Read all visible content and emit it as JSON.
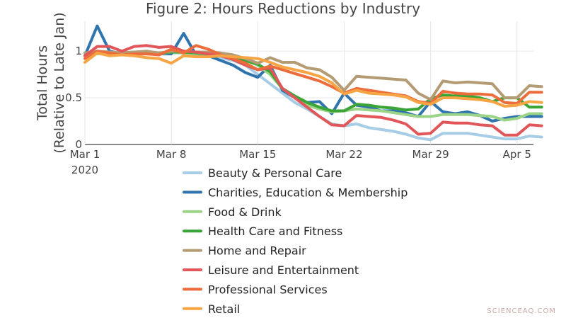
{
  "chart_data": {
    "type": "line",
    "title": "Figure 2: Hours Reductions by Industry",
    "ylabel_line1": "Total Hours",
    "ylabel_line2": "(Relative to Late Jan)",
    "xlabel": "",
    "x": [
      "Mar 1",
      "Mar 2",
      "Mar 3",
      "Mar 4",
      "Mar 5",
      "Mar 6",
      "Mar 7",
      "Mar 8",
      "Mar 9",
      "Mar 10",
      "Mar 11",
      "Mar 12",
      "Mar 13",
      "Mar 14",
      "Mar 15",
      "Mar 16",
      "Mar 17",
      "Mar 18",
      "Mar 19",
      "Mar 20",
      "Mar 21",
      "Mar 22",
      "Mar 23",
      "Mar 24",
      "Mar 25",
      "Mar 26",
      "Mar 27",
      "Mar 28",
      "Mar 29",
      "Mar 30",
      "Mar 31",
      "Apr 1",
      "Apr 2",
      "Apr 3",
      "Apr 4",
      "Apr 5",
      "Apr 6",
      "Apr 7"
    ],
    "x_ticks": [
      {
        "date": "Mar 1",
        "label": "Mar 1",
        "sublabel": "2020"
      },
      {
        "date": "Mar 8",
        "label": "Mar 8",
        "sublabel": ""
      },
      {
        "date": "Mar 15",
        "label": "Mar 15",
        "sublabel": ""
      },
      {
        "date": "Mar 22",
        "label": "Mar 22",
        "sublabel": ""
      },
      {
        "date": "Mar 29",
        "label": "Mar 29",
        "sublabel": ""
      },
      {
        "date": "Apr 5",
        "label": "Apr 5",
        "sublabel": ""
      }
    ],
    "y_ticks": [
      0,
      0.5,
      1
    ],
    "y_tick_labels": [
      "0",
      "0.5",
      "1"
    ],
    "ylim": [
      0,
      1.32
    ],
    "grid": true,
    "legend_position": "bottom",
    "series": [
      {
        "name": "Beauty & Personal Care",
        "color": "#a6cde5",
        "values": [
          0.97,
          0.98,
          0.97,
          0.97,
          0.97,
          0.97,
          0.97,
          0.98,
          0.98,
          0.97,
          0.96,
          0.93,
          0.9,
          0.85,
          0.75,
          0.65,
          0.55,
          0.45,
          0.38,
          0.3,
          0.22,
          0.2,
          0.22,
          0.18,
          0.16,
          0.14,
          0.11,
          0.07,
          0.05,
          0.12,
          0.12,
          0.12,
          0.1,
          0.08,
          0.06,
          0.06,
          0.09,
          0.08
        ]
      },
      {
        "name": "Charities, Education & Membership",
        "color": "#2f74ad",
        "values": [
          0.95,
          1.27,
          1.0,
          0.97,
          0.97,
          0.99,
          0.97,
          0.97,
          1.19,
          0.96,
          0.95,
          0.9,
          0.85,
          0.77,
          0.72,
          0.85,
          0.58,
          0.5,
          0.45,
          0.46,
          0.33,
          0.55,
          0.42,
          0.4,
          0.36,
          0.36,
          0.34,
          0.3,
          0.46,
          0.35,
          0.33,
          0.35,
          0.31,
          0.25,
          0.28,
          0.3,
          0.3,
          0.3
        ]
      },
      {
        "name": "Food & Drink",
        "color": "#9bd387",
        "values": [
          0.97,
          0.97,
          0.98,
          0.96,
          0.98,
          0.97,
          0.97,
          0.99,
          0.98,
          0.97,
          0.97,
          0.95,
          0.93,
          0.9,
          0.85,
          0.75,
          0.6,
          0.5,
          0.42,
          0.38,
          0.35,
          0.36,
          0.38,
          0.37,
          0.36,
          0.34,
          0.32,
          0.3,
          0.3,
          0.32,
          0.32,
          0.32,
          0.31,
          0.3,
          0.26,
          0.28,
          0.33,
          0.33
        ]
      },
      {
        "name": "Health Care and Fitness",
        "color": "#3aa536",
        "values": [
          0.98,
          0.99,
          0.98,
          0.98,
          0.99,
          0.99,
          0.98,
          0.99,
          0.99,
          0.98,
          0.97,
          0.96,
          0.93,
          0.9,
          0.86,
          0.78,
          0.6,
          0.52,
          0.45,
          0.4,
          0.36,
          0.36,
          0.43,
          0.42,
          0.4,
          0.39,
          0.37,
          0.38,
          0.49,
          0.53,
          0.52,
          0.52,
          0.5,
          0.46,
          0.5,
          0.5,
          0.4,
          0.4
        ]
      },
      {
        "name": "Home and Repair",
        "color": "#b39b73",
        "values": [
          0.98,
          1.0,
          0.99,
          0.98,
          0.99,
          1.0,
          0.98,
          1.0,
          1.0,
          0.99,
          0.99,
          0.98,
          0.96,
          0.92,
          0.87,
          0.93,
          0.88,
          0.88,
          0.82,
          0.8,
          0.72,
          0.58,
          0.73,
          0.72,
          0.71,
          0.7,
          0.69,
          0.55,
          0.48,
          0.68,
          0.66,
          0.67,
          0.66,
          0.65,
          0.5,
          0.5,
          0.63,
          0.62
        ]
      },
      {
        "name": "Leisure and Entertainment",
        "color": "#e15759",
        "values": [
          0.95,
          1.05,
          1.05,
          1.0,
          1.05,
          1.06,
          1.04,
          1.05,
          1.0,
          0.99,
          0.97,
          0.95,
          0.91,
          0.85,
          0.8,
          0.82,
          0.6,
          0.5,
          0.4,
          0.3,
          0.21,
          0.2,
          0.31,
          0.3,
          0.29,
          0.26,
          0.22,
          0.11,
          0.12,
          0.24,
          0.23,
          0.23,
          0.21,
          0.2,
          0.1,
          0.1,
          0.21,
          0.2
        ]
      },
      {
        "name": "Professional Services",
        "color": "#ec6c3c",
        "values": [
          0.92,
          1.0,
          0.98,
          0.96,
          0.97,
          0.97,
          0.96,
          1.02,
          0.98,
          1.06,
          1.02,
          0.96,
          0.92,
          0.87,
          0.8,
          0.84,
          0.8,
          0.76,
          0.72,
          0.68,
          0.62,
          0.55,
          0.6,
          0.58,
          0.56,
          0.54,
          0.52,
          0.46,
          0.44,
          0.57,
          0.55,
          0.54,
          0.54,
          0.53,
          0.45,
          0.44,
          0.56,
          0.56
        ]
      },
      {
        "name": "Retail",
        "color": "#f7a544",
        "values": [
          0.88,
          0.98,
          0.95,
          0.96,
          0.95,
          0.93,
          0.92,
          0.87,
          0.95,
          0.94,
          0.94,
          0.95,
          0.94,
          0.93,
          0.92,
          0.88,
          0.83,
          0.8,
          0.77,
          0.73,
          0.66,
          0.54,
          0.58,
          0.55,
          0.54,
          0.53,
          0.51,
          0.45,
          0.43,
          0.5,
          0.5,
          0.49,
          0.48,
          0.46,
          0.41,
          0.42,
          0.46,
          0.45
        ]
      }
    ]
  },
  "watermark": "SCIENCEAQ.COM"
}
